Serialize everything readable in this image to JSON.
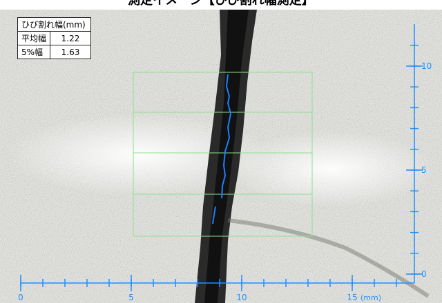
{
  "header": {
    "title": "測定イメージ【ひび割れ幅測定】"
  },
  "table": {
    "title": "ひび割れ幅(mm)",
    "rows": [
      [
        "平均幅",
        "1.22"
      ],
      [
        "5%幅",
        "1.63"
      ]
    ]
  },
  "x_scale": {
    "ticks": [
      0,
      5,
      10,
      15
    ],
    "unit": "(mm)"
  },
  "y_scale": {
    "ticks": [
      0,
      5,
      10
    ]
  }
}
